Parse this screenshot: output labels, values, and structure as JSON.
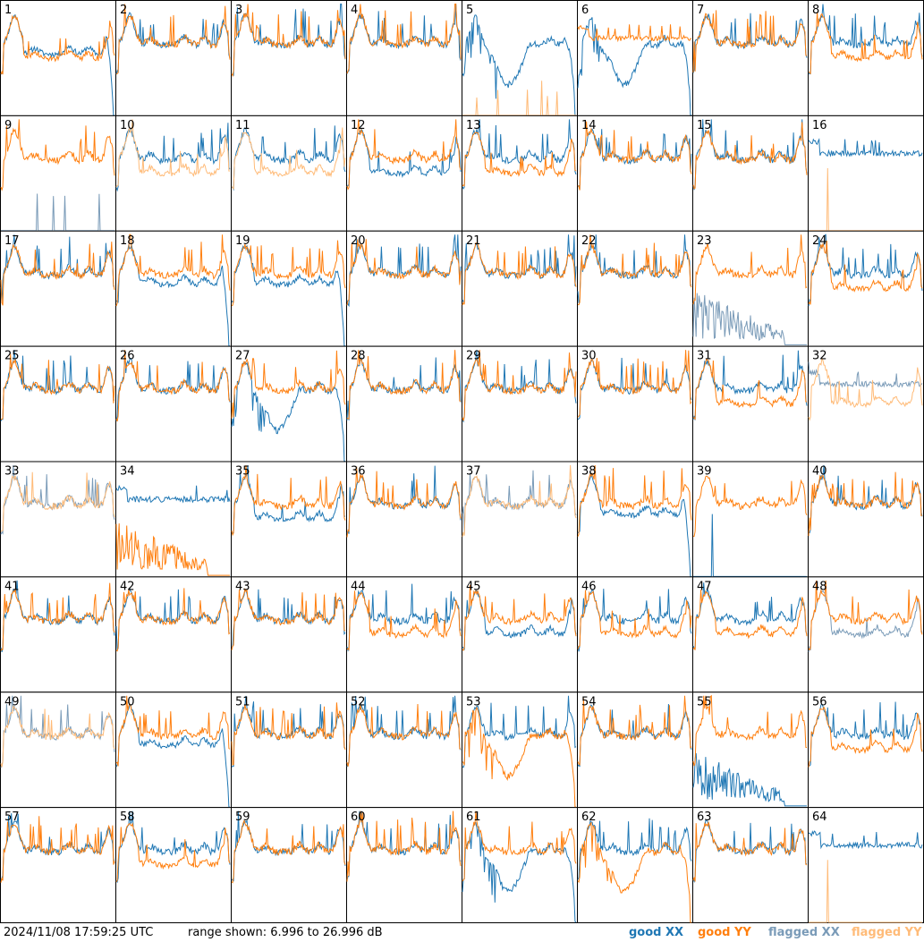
{
  "footer": {
    "timestamp": "2024/11/08 17:59:25 UTC",
    "range_text": "range shown: 6.996 to 26.996 dB",
    "legend": {
      "good_xx": "good XX",
      "good_yy": "good YY",
      "flagged_xx": "flagged XX",
      "flagged_yy": "flagged YY"
    }
  },
  "colors": {
    "good_xx": "#1f77b4",
    "good_yy": "#ff7f0e",
    "flagged_xx": "#7a9bb8",
    "flagged_yy": "#ffbb78",
    "frame": "#000000"
  },
  "chart_data": {
    "type": "line",
    "layout": "8x8 small multiples",
    "y_unit": "dB",
    "ylim": [
      6.996,
      26.996
    ],
    "panels": [
      {
        "label": "1",
        "xx": "good",
        "yy": "good",
        "shape_xx": "rolloff",
        "shape_yy": "dip"
      },
      {
        "label": "2",
        "xx": "good",
        "yy": "good",
        "shape_xx": "normal",
        "shape_yy": "normal"
      },
      {
        "label": "3",
        "xx": "good",
        "yy": "good",
        "shape_xx": "normal",
        "shape_yy": "normal"
      },
      {
        "label": "4",
        "xx": "good",
        "yy": "good",
        "shape_xx": "normal",
        "shape_yy": "normal"
      },
      {
        "label": "5",
        "xx": "good",
        "yy": "flagged",
        "shape_xx": "deepdip",
        "shape_yy": "spikes"
      },
      {
        "label": "6",
        "xx": "good",
        "yy": "good",
        "shape_xx": "deepdip",
        "shape_yy": "flat"
      },
      {
        "label": "7",
        "xx": "good",
        "yy": "good",
        "shape_xx": "normal",
        "shape_yy": "normal"
      },
      {
        "label": "8",
        "xx": "good",
        "yy": "good",
        "shape_xx": "normal",
        "shape_yy": "dip"
      },
      {
        "label": "9",
        "xx": "flagged",
        "yy": "good",
        "shape_xx": "spikes",
        "shape_yy": "normal"
      },
      {
        "label": "10",
        "xx": "good",
        "yy": "flagged",
        "shape_xx": "normal",
        "shape_yy": "dip"
      },
      {
        "label": "11",
        "xx": "good",
        "yy": "flagged",
        "shape_xx": "normal",
        "shape_yy": "dip"
      },
      {
        "label": "12",
        "xx": "good",
        "yy": "good",
        "shape_xx": "dip",
        "shape_yy": "normal"
      },
      {
        "label": "13",
        "xx": "good",
        "yy": "good",
        "shape_xx": "normal",
        "shape_yy": "dip"
      },
      {
        "label": "14",
        "xx": "good",
        "yy": "good",
        "shape_xx": "normal",
        "shape_yy": "normal"
      },
      {
        "label": "15",
        "xx": "good",
        "yy": "good",
        "shape_xx": "normal",
        "shape_yy": "normal"
      },
      {
        "label": "16",
        "xx": "good",
        "yy": "flagged",
        "shape_xx": "flat",
        "shape_yy": "spike1"
      },
      {
        "label": "17",
        "xx": "good",
        "yy": "good",
        "shape_xx": "normal",
        "shape_yy": "normal"
      },
      {
        "label": "18",
        "xx": "good",
        "yy": "good",
        "shape_xx": "rolloff",
        "shape_yy": "normal"
      },
      {
        "label": "19",
        "xx": "good",
        "yy": "good",
        "shape_xx": "rolloff",
        "shape_yy": "normal"
      },
      {
        "label": "20",
        "xx": "good",
        "yy": "good",
        "shape_xx": "normal",
        "shape_yy": "normal"
      },
      {
        "label": "21",
        "xx": "good",
        "yy": "good",
        "shape_xx": "normal",
        "shape_yy": "normal"
      },
      {
        "label": "22",
        "xx": "good",
        "yy": "good",
        "shape_xx": "normal",
        "shape_yy": "normal"
      },
      {
        "label": "23",
        "xx": "flagged",
        "yy": "good",
        "shape_xx": "noise",
        "shape_yy": "normal"
      },
      {
        "label": "24",
        "xx": "good",
        "yy": "good",
        "shape_xx": "normal",
        "shape_yy": "dip"
      },
      {
        "label": "25",
        "xx": "good",
        "yy": "good",
        "shape_xx": "normal",
        "shape_yy": "normal"
      },
      {
        "label": "26",
        "xx": "good",
        "yy": "good",
        "shape_xx": "normal",
        "shape_yy": "normal"
      },
      {
        "label": "27",
        "xx": "good",
        "yy": "good",
        "shape_xx": "deepdip",
        "shape_yy": "normal"
      },
      {
        "label": "28",
        "xx": "good",
        "yy": "good",
        "shape_xx": "normal",
        "shape_yy": "normal"
      },
      {
        "label": "29",
        "xx": "good",
        "yy": "good",
        "shape_xx": "normal",
        "shape_yy": "normal"
      },
      {
        "label": "30",
        "xx": "good",
        "yy": "good",
        "shape_xx": "normal",
        "shape_yy": "normal"
      },
      {
        "label": "31",
        "xx": "good",
        "yy": "good",
        "shape_xx": "normal",
        "shape_yy": "dip"
      },
      {
        "label": "32",
        "xx": "flagged",
        "yy": "flagged",
        "shape_xx": "flat",
        "shape_yy": "dip"
      },
      {
        "label": "33",
        "xx": "flagged",
        "yy": "flagged",
        "shape_xx": "normal",
        "shape_yy": "normal"
      },
      {
        "label": "34",
        "xx": "good",
        "yy": "good",
        "shape_xx": "flat",
        "shape_yy": "noise"
      },
      {
        "label": "35",
        "xx": "good",
        "yy": "good",
        "shape_xx": "dip",
        "shape_yy": "normal"
      },
      {
        "label": "36",
        "xx": "good",
        "yy": "good",
        "shape_xx": "normal",
        "shape_yy": "normal"
      },
      {
        "label": "37",
        "xx": "flagged",
        "yy": "flagged",
        "shape_xx": "normal",
        "shape_yy": "normal"
      },
      {
        "label": "38",
        "xx": "good",
        "yy": "good",
        "shape_xx": "rolloff",
        "shape_yy": "normal"
      },
      {
        "label": "39",
        "xx": "good",
        "yy": "good",
        "shape_xx": "spike1",
        "shape_yy": "normal"
      },
      {
        "label": "40",
        "xx": "good",
        "yy": "good",
        "shape_xx": "normal",
        "shape_yy": "normal"
      },
      {
        "label": "41",
        "xx": "good",
        "yy": "good",
        "shape_xx": "normal",
        "shape_yy": "normal"
      },
      {
        "label": "42",
        "xx": "good",
        "yy": "good",
        "shape_xx": "normal",
        "shape_yy": "normal"
      },
      {
        "label": "43",
        "xx": "good",
        "yy": "good",
        "shape_xx": "normal",
        "shape_yy": "normal"
      },
      {
        "label": "44",
        "xx": "good",
        "yy": "good",
        "shape_xx": "normal",
        "shape_yy": "dip"
      },
      {
        "label": "45",
        "xx": "good",
        "yy": "good",
        "shape_xx": "dip",
        "shape_yy": "normal"
      },
      {
        "label": "46",
        "xx": "good",
        "yy": "good",
        "shape_xx": "normal",
        "shape_yy": "dip"
      },
      {
        "label": "47",
        "xx": "good",
        "yy": "good",
        "shape_xx": "normal",
        "shape_yy": "dip"
      },
      {
        "label": "48",
        "xx": "flagged",
        "yy": "good",
        "shape_xx": "dip",
        "shape_yy": "normal"
      },
      {
        "label": "49",
        "xx": "flagged",
        "yy": "flagged",
        "shape_xx": "normal",
        "shape_yy": "normal"
      },
      {
        "label": "50",
        "xx": "good",
        "yy": "good",
        "shape_xx": "rolloff",
        "shape_yy": "normal"
      },
      {
        "label": "51",
        "xx": "good",
        "yy": "good",
        "shape_xx": "normal",
        "shape_yy": "normal"
      },
      {
        "label": "52",
        "xx": "good",
        "yy": "good",
        "shape_xx": "normal",
        "shape_yy": "normal"
      },
      {
        "label": "53",
        "xx": "good",
        "yy": "good",
        "shape_xx": "normal",
        "shape_yy": "deepdip"
      },
      {
        "label": "54",
        "xx": "good",
        "yy": "good",
        "shape_xx": "normal",
        "shape_yy": "normal"
      },
      {
        "label": "55",
        "xx": "good",
        "yy": "good",
        "shape_xx": "noise",
        "shape_yy": "normal"
      },
      {
        "label": "56",
        "xx": "good",
        "yy": "good",
        "shape_xx": "normal",
        "shape_yy": "dip"
      },
      {
        "label": "57",
        "xx": "good",
        "yy": "good",
        "shape_xx": "normal",
        "shape_yy": "normal"
      },
      {
        "label": "58",
        "xx": "good",
        "yy": "good",
        "shape_xx": "normal",
        "shape_yy": "dip"
      },
      {
        "label": "59",
        "xx": "good",
        "yy": "good",
        "shape_xx": "normal",
        "shape_yy": "normal"
      },
      {
        "label": "60",
        "xx": "good",
        "yy": "good",
        "shape_xx": "normal",
        "shape_yy": "normal"
      },
      {
        "label": "61",
        "xx": "good",
        "yy": "good",
        "shape_xx": "deepdip",
        "shape_yy": "normal"
      },
      {
        "label": "62",
        "xx": "good",
        "yy": "good",
        "shape_xx": "normal",
        "shape_yy": "deepdip"
      },
      {
        "label": "63",
        "xx": "good",
        "yy": "good",
        "shape_xx": "normal",
        "shape_yy": "normal"
      },
      {
        "label": "64",
        "xx": "good",
        "yy": "flagged",
        "shape_xx": "flat",
        "shape_yy": "spike1"
      }
    ]
  }
}
